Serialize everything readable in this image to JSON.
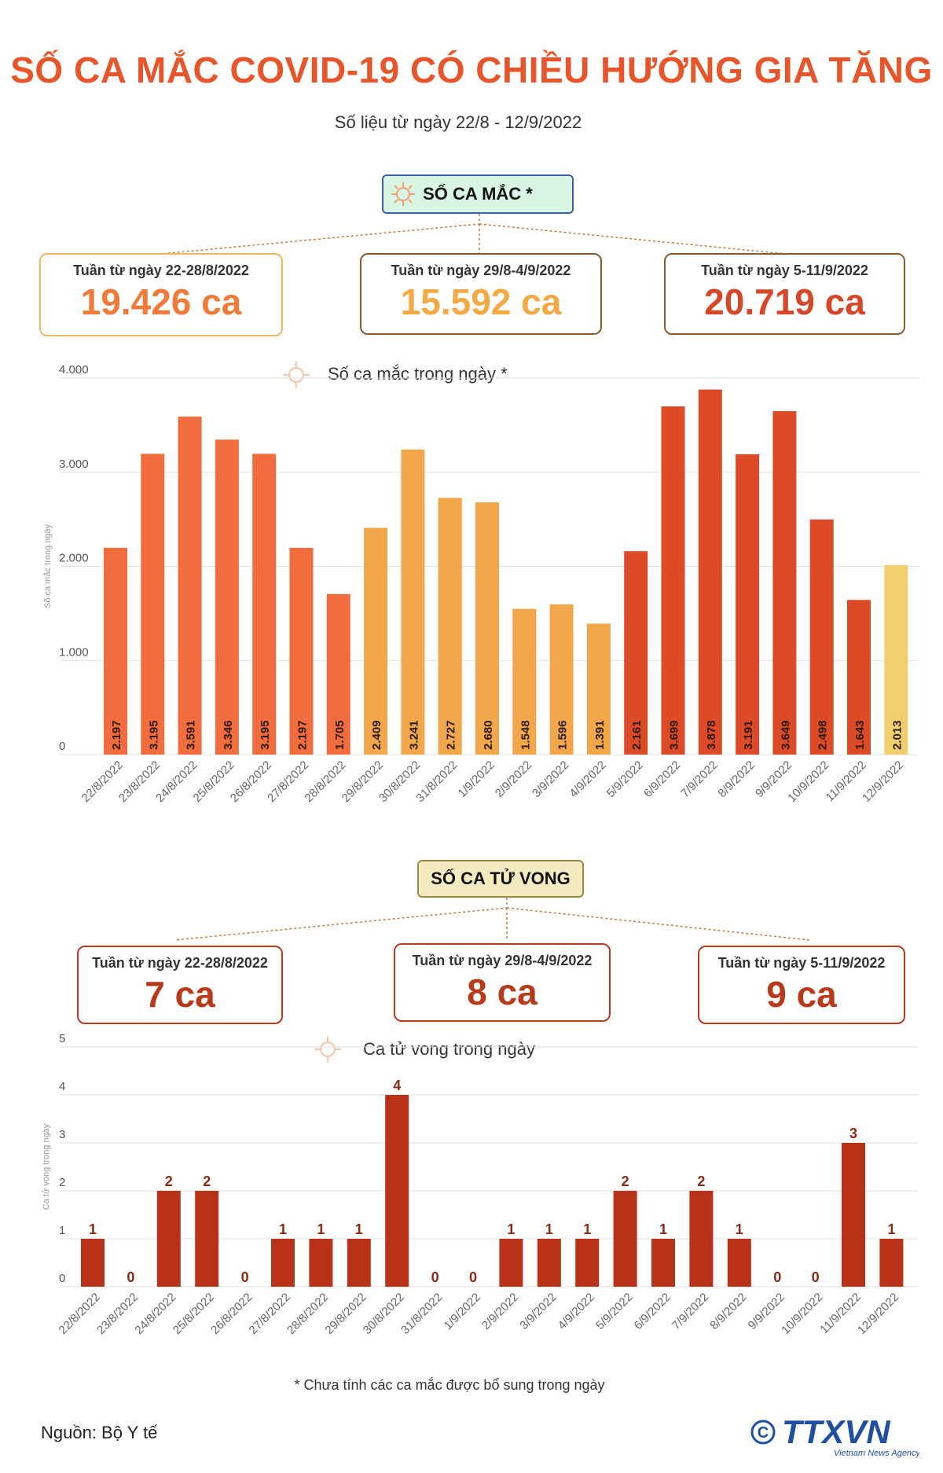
{
  "title": "SỐ CA MẮC COVID-19 CÓ CHIỀU HƯỚNG GIA TĂNG",
  "subtitle": "Số liệu từ ngày 22/8 - 12/9/2022",
  "cases_section": {
    "tag": "SỐ CA MẮC *",
    "weeks": [
      {
        "label": "Tuần từ ngày 22-28/8/2022",
        "value": "19.426 ca",
        "color": "#f07a3a",
        "border": "#f2b766"
      },
      {
        "label": "Tuần từ ngày 29/8-4/9/2022",
        "value": "15.592 ca",
        "color": "#f5a945",
        "border": "#8b5a2b"
      },
      {
        "label": "Tuần từ ngày 5-11/9/2022",
        "value": "20.719 ca",
        "color": "#d6472a",
        "border": "#8b5a2b"
      }
    ],
    "chart_title": "Số ca mắc trong ngày *"
  },
  "deaths_section": {
    "tag": "SỐ CA TỬ VONG",
    "weeks": [
      {
        "label": "Tuần từ ngày 22-28/8/2022",
        "value": "7 ca",
        "color": "#b83a1a",
        "border": "#b83a1a"
      },
      {
        "label": "Tuần từ ngày 29/8-4/9/2022",
        "value": "8 ca",
        "color": "#b83a1a",
        "border": "#b83a1a"
      },
      {
        "label": "Tuần từ ngày 5-11/9/2022",
        "value": "9 ca",
        "color": "#b83a1a",
        "border": "#b83a1a"
      }
    ],
    "chart_title": "Ca tử vong trong ngày"
  },
  "chart_data": [
    {
      "type": "bar",
      "title": "Số ca mắc trong ngày *",
      "ylabel": "Số ca mắc trong ngày",
      "ylim": [
        0,
        4000
      ],
      "yticks": [
        "0",
        "1.000",
        "2.000",
        "3.000",
        "4.000"
      ],
      "categories": [
        "22/8/2022",
        "23/8/2022",
        "24/8/2022",
        "25/8/2022",
        "26/8/2022",
        "27/8/2022",
        "28/8/2022",
        "29/8/2022",
        "30/8/2022",
        "31/8/2022",
        "1/9/2022",
        "2/9/2022",
        "3/9/2022",
        "4/9/2022",
        "5/9/2022",
        "6/9/2022",
        "7/9/2022",
        "8/9/2022",
        "9/9/2022",
        "10/9/2022",
        "11/9/2022",
        "12/9/2022"
      ],
      "values": [
        2197,
        3195,
        3591,
        3346,
        3195,
        2197,
        1705,
        2409,
        3241,
        2727,
        2680,
        1548,
        1596,
        1391,
        2161,
        3699,
        3878,
        3191,
        3649,
        2498,
        1643,
        2013
      ],
      "data_labels": [
        "2.197",
        "3.195",
        "3.591",
        "3.346",
        "3.195",
        "2.197",
        "1.705",
        "2.409",
        "3.241",
        "2.727",
        "2.680",
        "1.548",
        "1.596",
        "1.391",
        "2.161",
        "3.699",
        "3.878",
        "3.191",
        "3.649",
        "2.498",
        "1.643",
        "2.013"
      ],
      "bar_colors": [
        "#f26d3d",
        "#f26d3d",
        "#f26d3d",
        "#f26d3d",
        "#f26d3d",
        "#f26d3d",
        "#f26d3d",
        "#f2a84a",
        "#f2a84a",
        "#f2a84a",
        "#f2a84a",
        "#f2a84a",
        "#f2a84a",
        "#f2a84a",
        "#dc4a28",
        "#dc4a28",
        "#dc4a28",
        "#dc4a28",
        "#dc4a28",
        "#dc4a28",
        "#dc4a28",
        "#f2cf6e"
      ],
      "grid": true
    },
    {
      "type": "bar",
      "title": "Ca tử vong trong ngày",
      "ylabel": "Ca tử vong trong ngày",
      "ylim": [
        0,
        5
      ],
      "yticks": [
        "0",
        "1",
        "2",
        "3",
        "4",
        "5"
      ],
      "categories": [
        "22/8/2022",
        "23/8/2022",
        "24/8/2022",
        "25/8/2022",
        "26/8/2022",
        "27/8/2022",
        "28/8/2022",
        "29/8/2022",
        "30/8/2022",
        "31/8/2022",
        "1/9/2022",
        "2/9/2022",
        "3/9/2022",
        "4/9/2022",
        "5/9/2022",
        "6/9/2022",
        "7/9/2022",
        "8/9/2022",
        "9/9/2022",
        "10/9/2022",
        "11/9/2022",
        "12/9/2022"
      ],
      "values": [
        1,
        0,
        2,
        2,
        0,
        1,
        1,
        1,
        4,
        0,
        0,
        1,
        1,
        1,
        2,
        1,
        2,
        1,
        0,
        0,
        3,
        1
      ],
      "data_labels": [
        "1",
        "0",
        "2",
        "2",
        "0",
        "1",
        "1",
        "1",
        "4",
        "0",
        "0",
        "1",
        "1",
        "1",
        "2",
        "1",
        "2",
        "1",
        "0",
        "0",
        "3",
        "1"
      ],
      "bar_color": "#b8321a",
      "grid": true
    }
  ],
  "footnote": "* Chưa tính các ca mắc được bổ sung trong ngày",
  "source": "Nguồn: Bộ Y tế",
  "logo": {
    "text": "TTXVN",
    "subtext": "Vietnam News Agency",
    "symbol": "©",
    "color": "#1f4fa0"
  },
  "icons": {
    "virus": "virus-icon"
  }
}
